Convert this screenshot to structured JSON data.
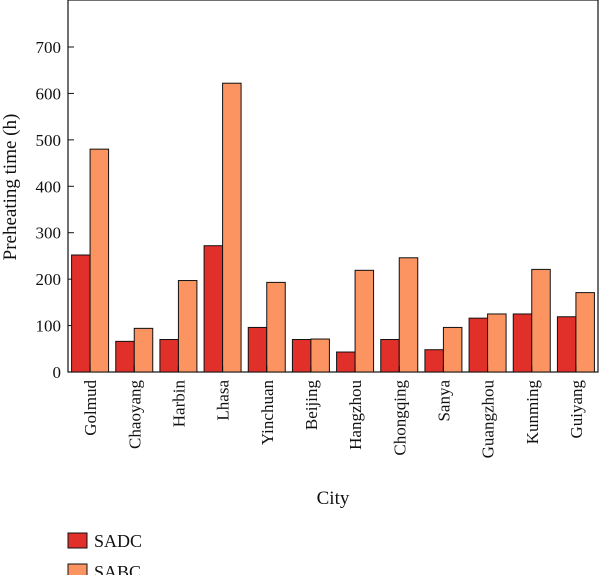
{
  "chart_data": {
    "type": "bar",
    "title": "",
    "xlabel": "City",
    "ylabel": "Preheating time (h)",
    "ylim": [
      0,
      700
    ],
    "yticks": [
      0,
      100,
      200,
      300,
      400,
      500,
      600,
      700
    ],
    "categories": [
      "Golmud",
      "Chaoyang",
      "Harbin",
      "Lhasa",
      "Yinchuan",
      "Beijing",
      "Hangzhou",
      "Chongqing",
      "Sanya",
      "Guangzhou",
      "Kunming",
      "Guiyang"
    ],
    "series": [
      {
        "name": "SADC",
        "color": "#e1302a",
        "values": [
          252,
          66,
          70,
          272,
          96,
          70,
          43,
          70,
          48,
          116,
          125,
          119
        ]
      },
      {
        "name": "SABC",
        "color": "#fb9461",
        "values": [
          480,
          94,
          197,
          622,
          193,
          71,
          219,
          246,
          96,
          125,
          221,
          171
        ]
      }
    ],
    "grid": false,
    "legend_position": "bottom-left"
  }
}
